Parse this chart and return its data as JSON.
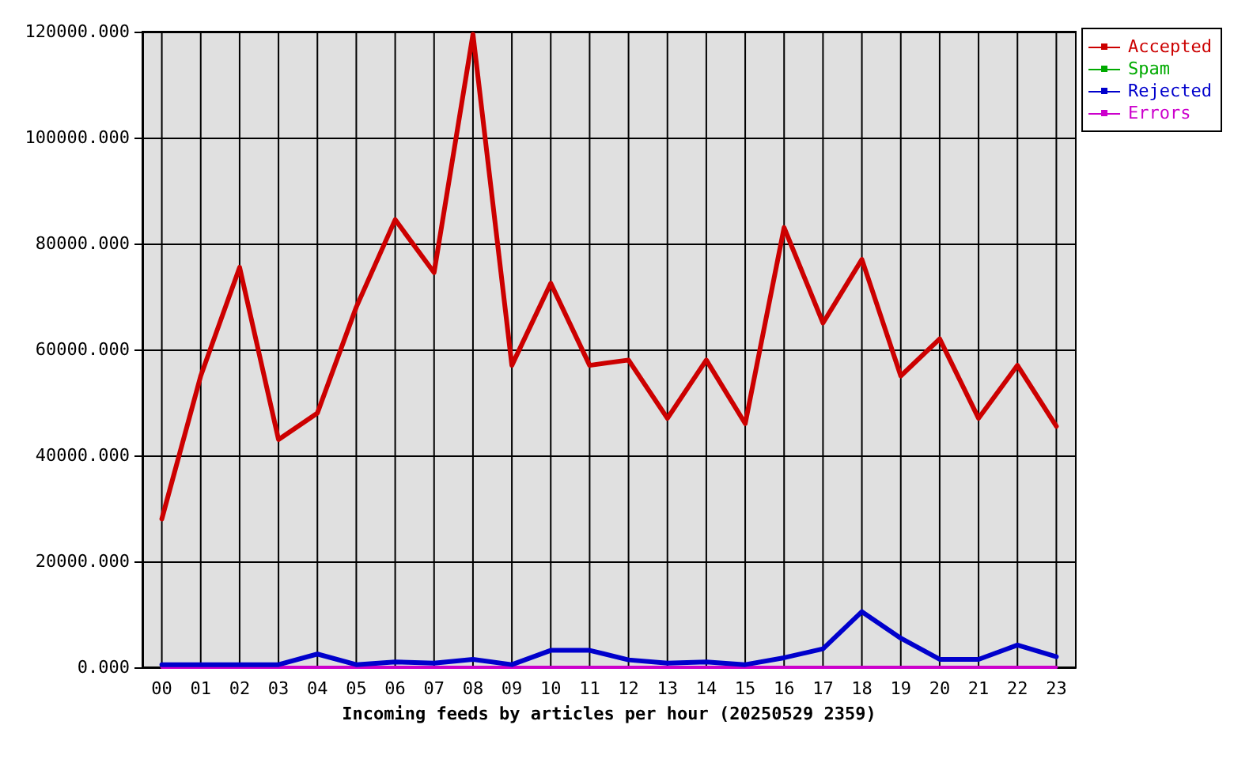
{
  "chart_data": {
    "type": "line",
    "xlabel": "Incoming feeds by articles per hour (20250529 2359)",
    "categories": [
      "00",
      "01",
      "02",
      "03",
      "04",
      "05",
      "06",
      "07",
      "08",
      "09",
      "10",
      "11",
      "12",
      "13",
      "14",
      "15",
      "16",
      "17",
      "18",
      "19",
      "20",
      "21",
      "22",
      "23"
    ],
    "series": [
      {
        "name": "Accepted",
        "color": "#cc0000",
        "values": [
          28000,
          55000,
          75500,
          43000,
          48000,
          68000,
          84500,
          74500,
          119500,
          57000,
          72500,
          57000,
          58000,
          47000,
          58000,
          46000,
          83000,
          65000,
          77000,
          55000,
          62000,
          47000,
          57000,
          45500
        ]
      },
      {
        "name": "Spam",
        "color": "#00aa00",
        "values": [
          null,
          null,
          null,
          null,
          null,
          null,
          null,
          null,
          null,
          null,
          null,
          null,
          null,
          null,
          null,
          null,
          null,
          null,
          null,
          null,
          null,
          null,
          null,
          null
        ]
      },
      {
        "name": "Rejected",
        "color": "#0000cc",
        "values": [
          500,
          500,
          500,
          500,
          2500,
          500,
          1000,
          800,
          1500,
          500,
          3200,
          3200,
          1400,
          800,
          1000,
          500,
          1800,
          3500,
          10500,
          5500,
          1500,
          1500,
          4200,
          2000
        ]
      },
      {
        "name": "Errors",
        "color": "#cc00cc",
        "values": [
          0,
          0,
          0,
          0,
          0,
          0,
          0,
          0,
          0,
          0,
          0,
          0,
          0,
          0,
          0,
          0,
          0,
          0,
          0,
          0,
          0,
          0,
          0,
          0
        ]
      }
    ],
    "ylim": [
      0,
      120000
    ],
    "yticks": [
      {
        "value": 0,
        "label": "0.000"
      },
      {
        "value": 20000,
        "label": "20000.000"
      },
      {
        "value": 40000,
        "label": "40000.000"
      },
      {
        "value": 60000,
        "label": "60000.000"
      },
      {
        "value": 80000,
        "label": "80000.000"
      },
      {
        "value": 100000,
        "label": "100000.000"
      },
      {
        "value": 120000,
        "label": "120000.000"
      }
    ],
    "grid": true,
    "legend": "top right",
    "marker": "none",
    "line_style": "solid"
  }
}
